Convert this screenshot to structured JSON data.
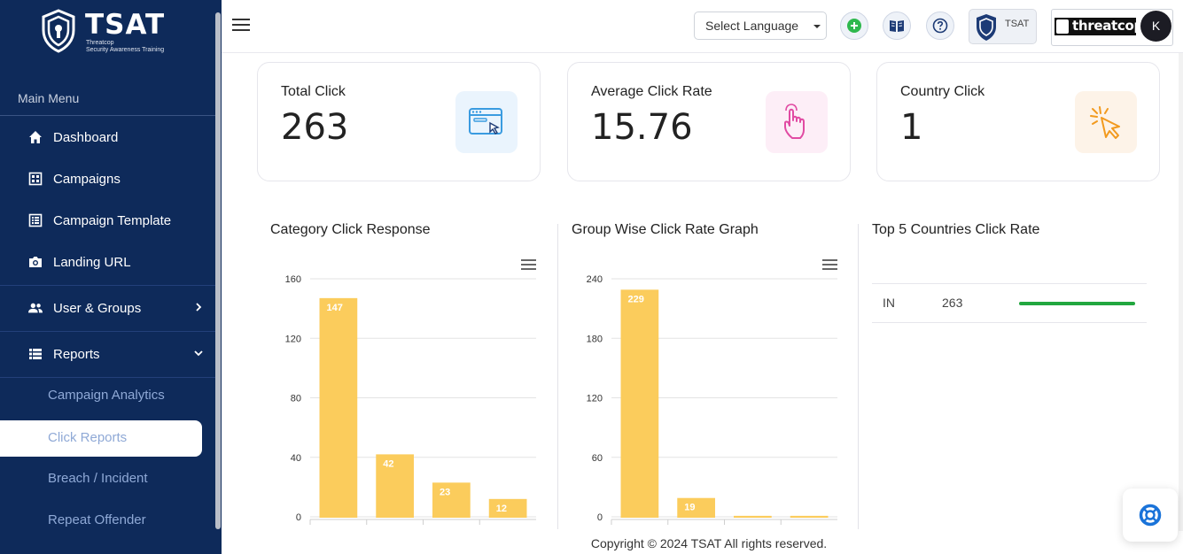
{
  "brand": {
    "name": "TSAT",
    "subtitle_1": "Threatcop",
    "subtitle_2": "Security Awareness Training"
  },
  "sidebar": {
    "section_title": "Main Menu",
    "items": [
      {
        "label": "Dashboard",
        "icon": "home-icon"
      },
      {
        "label": "Campaigns",
        "icon": "campaigns-icon"
      },
      {
        "label": "Campaign Template",
        "icon": "template-icon"
      },
      {
        "label": "Landing URL",
        "icon": "camera-icon"
      },
      {
        "label": "User & Groups",
        "icon": "users-icon"
      },
      {
        "label": "Reports",
        "icon": "reports-icon"
      }
    ],
    "report_subitems": [
      "Campaign Analytics",
      "Click Reports",
      "Breach / Incident",
      "Repeat Offender"
    ],
    "active_subitem": "Click Reports"
  },
  "topbar": {
    "language_select": "Select Language",
    "tsat_badge_label": "TSAT",
    "threatcop_logo": "threatcop",
    "avatar_initial": "K"
  },
  "stats": [
    {
      "label": "Total Click",
      "value": "263",
      "icon": "browser-click-icon",
      "color": "#eaf4fd"
    },
    {
      "label": "Average Click Rate",
      "value": "15.76",
      "icon": "hand-tap-icon",
      "color": "#fdeef7"
    },
    {
      "label": "Country Click",
      "value": "1",
      "icon": "cursor-click-icon",
      "color": "#fdf3e8"
    }
  ],
  "charts": {
    "category_title": "Category Click Response",
    "group_title": "Group Wise Click Rate Graph",
    "countries_title": "Top 5 Countries Click Rate"
  },
  "chart_data": [
    {
      "type": "bar",
      "title": "Category Click Response",
      "categories": [
        "",
        "",
        "",
        ""
      ],
      "values": [
        147,
        42,
        23,
        12
      ],
      "ylim": [
        0,
        160
      ],
      "yticks": [
        0,
        40,
        80,
        120,
        160
      ],
      "color": "#fbcc5c",
      "grid": true
    },
    {
      "type": "bar",
      "title": "Group Wise Click Rate Graph",
      "categories": [
        "",
        "",
        "",
        ""
      ],
      "values": [
        229,
        19,
        1,
        1
      ],
      "labels": [
        "229",
        "19",
        "",
        ""
      ],
      "ylim": [
        0,
        240
      ],
      "yticks": [
        0,
        60,
        120,
        180,
        240
      ],
      "color": "#fbcc5c",
      "grid": true
    }
  ],
  "countries": [
    {
      "code": "IN",
      "count": "263",
      "rate": 1.0
    }
  ],
  "footer": "Copyright © 2024 TSAT All rights reserved."
}
